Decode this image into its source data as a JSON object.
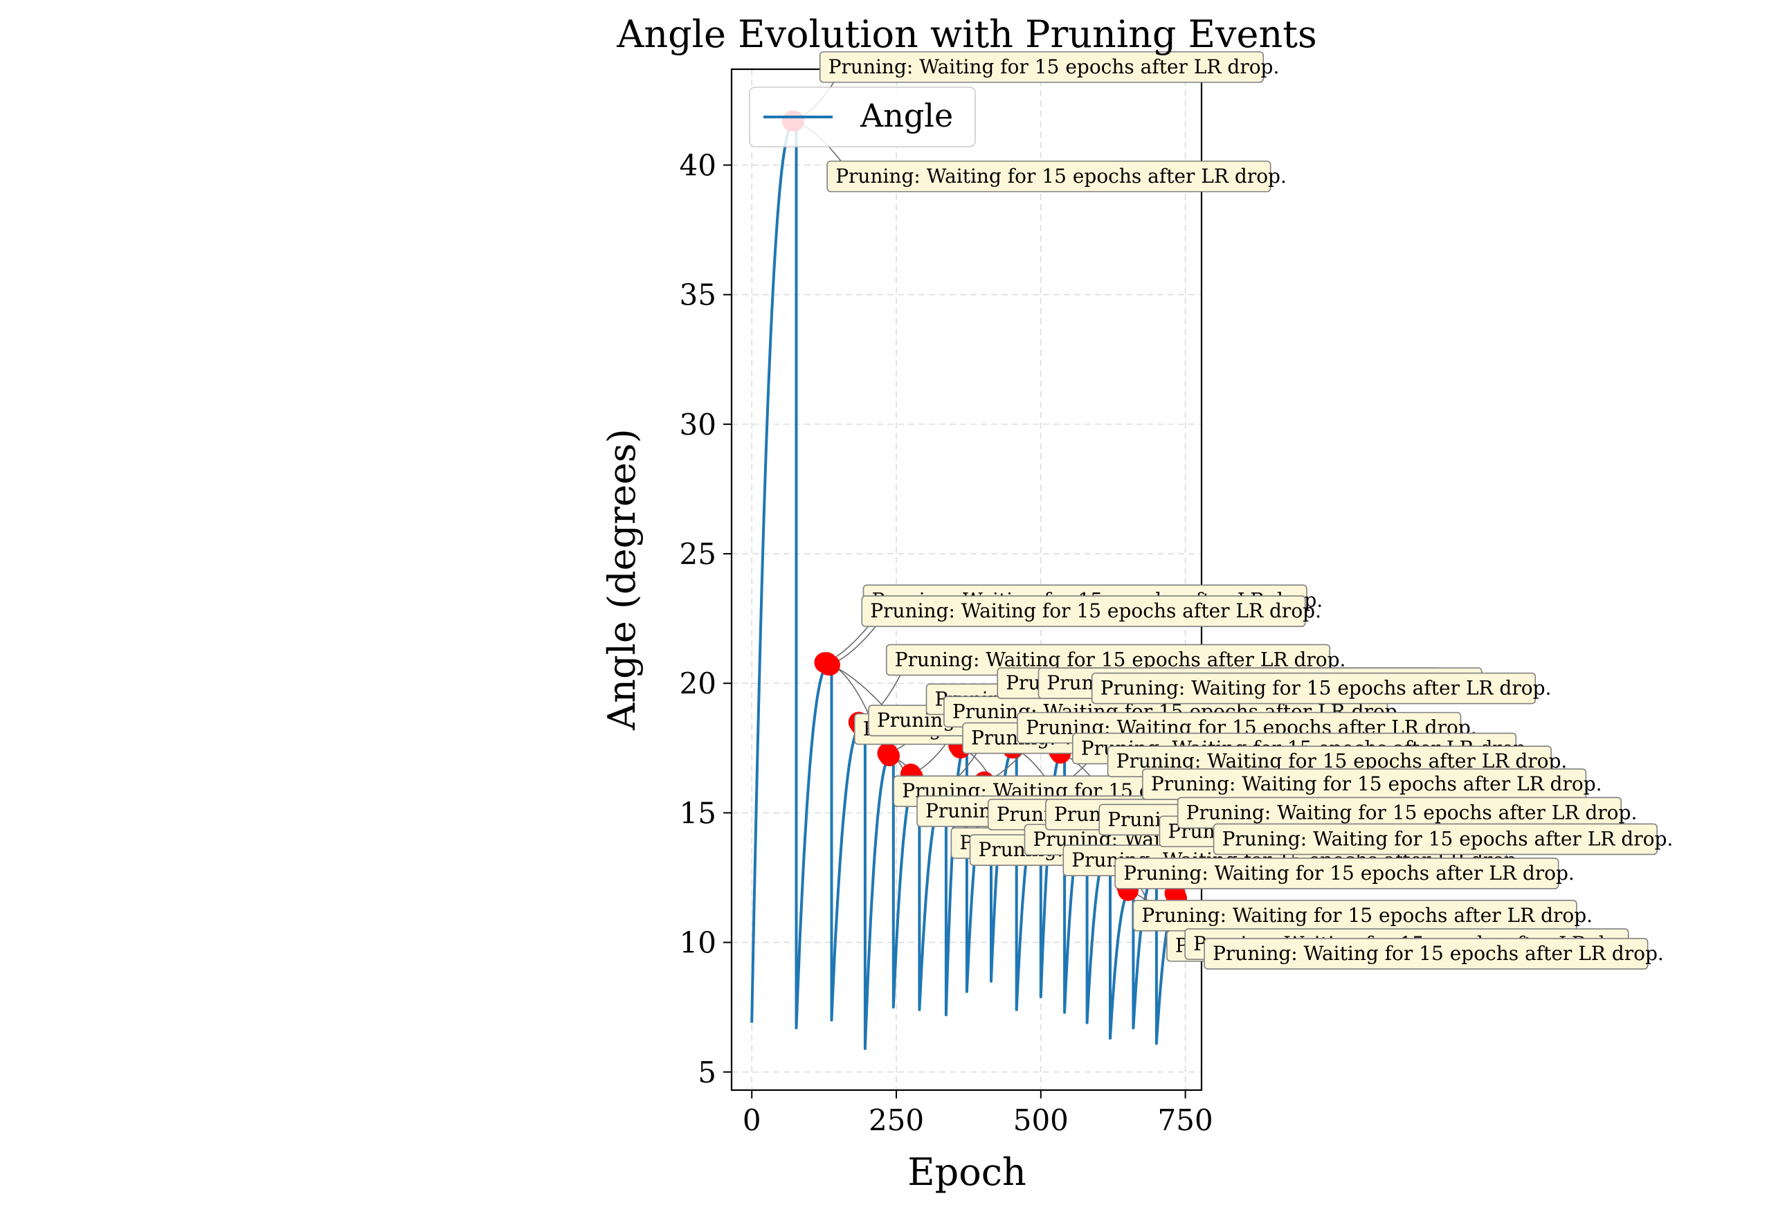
{
  "chart_data": {
    "type": "line",
    "title": "Angle Evolution with Pruning Events",
    "xlabel": "Epoch",
    "ylabel": "Angle (degrees)",
    "xlim": [
      -35,
      778
    ],
    "ylim": [
      4.3,
      43.7
    ],
    "xticks": [
      0,
      250,
      500,
      750
    ],
    "yticks": [
      5,
      10,
      15,
      20,
      25,
      30,
      35,
      40
    ],
    "grid": true,
    "legend": {
      "placement": "top-left",
      "entries": [
        "Angle"
      ]
    },
    "colors": {
      "line": "#1f77b4",
      "marker": "#ff0000",
      "box_fill": "#fdf7d9",
      "box_edge": "#808080"
    },
    "series": [
      {
        "name": "Angle",
        "cycles": [
          {
            "start": 0,
            "end": 77,
            "low": 6.9,
            "peak": 41.7
          },
          {
            "start": 77,
            "end": 138,
            "low": 6.7,
            "peak": 20.8
          },
          {
            "start": 138,
            "end": 196,
            "low": 7.0,
            "peak": 18.5
          },
          {
            "start": 196,
            "end": 245,
            "low": 5.9,
            "peak": 17.3
          },
          {
            "start": 245,
            "end": 290,
            "low": 7.5,
            "peak": 16.5
          },
          {
            "start": 290,
            "end": 336,
            "low": 7.4,
            "peak": 15.7
          },
          {
            "start": 336,
            "end": 372,
            "low": 7.2,
            "peak": 17.6
          },
          {
            "start": 372,
            "end": 414,
            "low": 8.1,
            "peak": 16.2
          },
          {
            "start": 414,
            "end": 458,
            "low": 8.5,
            "peak": 17.6
          },
          {
            "start": 458,
            "end": 500,
            "low": 7.4,
            "peak": 15.3
          },
          {
            "start": 500,
            "end": 541,
            "low": 7.9,
            "peak": 17.4
          },
          {
            "start": 541,
            "end": 580,
            "low": 7.3,
            "peak": 14.8
          },
          {
            "start": 580,
            "end": 620,
            "low": 6.9,
            "peak": 13.6
          },
          {
            "start": 620,
            "end": 660,
            "low": 6.3,
            "peak": 12.1
          },
          {
            "start": 660,
            "end": 700,
            "low": 6.7,
            "peak": 12.6
          },
          {
            "start": 700,
            "end": 742,
            "low": 6.1,
            "peak": 11.8
          }
        ]
      }
    ],
    "pruning_events": [
      {
        "x": 70,
        "y": 41.7,
        "label": "Pruning: Waiting for 15 epochs after LR drop."
      },
      {
        "x": 73,
        "y": 41.7,
        "label": "Pruning: Waiting for 15 epochs after LR drop."
      },
      {
        "x": 126,
        "y": 20.8,
        "label": "Pruning: Waiting for 15 epochs after LR drop."
      },
      {
        "x": 130,
        "y": 20.8,
        "label": "Pruning: Waiting for 15 epochs after LR drop."
      },
      {
        "x": 133,
        "y": 20.7,
        "label": "Pruning: Waiting for 15 epochs after LR drop."
      },
      {
        "x": 135,
        "y": 20.7,
        "label": "Pruning: Waiting for 15 epochs after LR drop."
      },
      {
        "x": 185,
        "y": 18.5,
        "label": "Pruning: Waiting for 15 epochs after LR drop."
      },
      {
        "x": 188,
        "y": 18.4,
        "label": "Pruning: Waiting for 15 epochs after LR drop."
      },
      {
        "x": 235,
        "y": 17.3,
        "label": "Pruning: Waiting for 15 epochs after LR drop."
      },
      {
        "x": 238,
        "y": 17.2,
        "label": "Pruning: Waiting for 15 epochs after LR drop."
      },
      {
        "x": 275,
        "y": 16.5,
        "label": "Pruning: Waiting for 15 epochs after LR drop."
      },
      {
        "x": 278,
        "y": 16.4,
        "label": "Pruning: Waiting for 15 epochs after LR drop."
      },
      {
        "x": 317,
        "y": 15.8,
        "label": "Pruning: Waiting for 15 epochs after LR drop."
      },
      {
        "x": 320,
        "y": 15.7,
        "label": "Pruning: Waiting for 15 epochs after LR drop."
      },
      {
        "x": 358,
        "y": 17.6,
        "label": "Pruning: Waiting for 15 epochs after LR drop."
      },
      {
        "x": 361,
        "y": 17.5,
        "label": "Pruning: Waiting for 15 epochs after LR drop."
      },
      {
        "x": 402,
        "y": 16.2,
        "label": "Pruning: Waiting for 15 epochs after LR drop."
      },
      {
        "x": 405,
        "y": 16.1,
        "label": "Pruning: Waiting for 15 epochs after LR drop."
      },
      {
        "x": 448,
        "y": 17.6,
        "label": "Pruning: Waiting for 15 epochs after LR drop."
      },
      {
        "x": 451,
        "y": 17.5,
        "label": "Pruning: Waiting for 15 epochs after LR drop."
      },
      {
        "x": 488,
        "y": 15.4,
        "label": "Pruning: Waiting for 15 epochs after LR drop."
      },
      {
        "x": 491,
        "y": 15.3,
        "label": "Pruning: Waiting for 15 epochs after LR drop."
      },
      {
        "x": 531,
        "y": 17.4,
        "label": "Pruning: Waiting for 15 epochs after LR drop."
      },
      {
        "x": 534,
        "y": 17.3,
        "label": "Pruning: Waiting for 15 epochs after LR drop."
      },
      {
        "x": 568,
        "y": 14.9,
        "label": "Pruning: Waiting for 15 epochs after LR drop."
      },
      {
        "x": 571,
        "y": 14.8,
        "label": "Pruning: Waiting for 15 epochs after LR drop."
      },
      {
        "x": 609,
        "y": 13.7,
        "label": "Pruning: Waiting for 15 epochs after LR drop."
      },
      {
        "x": 612,
        "y": 13.6,
        "label": "Pruning: Waiting for 15 epochs after LR drop."
      },
      {
        "x": 648,
        "y": 12.2,
        "label": "Pruning: Waiting for 15 epochs after LR drop."
      },
      {
        "x": 651,
        "y": 12.0,
        "label": "Pruning: Waiting for 15 epochs after LR drop."
      },
      {
        "x": 689,
        "y": 12.6,
        "label": "Pruning: Waiting for 15 epochs after LR drop."
      },
      {
        "x": 692,
        "y": 12.5,
        "label": "Pruning: Waiting for 15 epochs after LR drop."
      },
      {
        "x": 732,
        "y": 11.9,
        "label": "Pruning: Waiting for 15 epochs after LR drop."
      },
      {
        "x": 735,
        "y": 11.7,
        "label": "Pruning: Waiting for 15 epochs after LR drop."
      }
    ]
  }
}
